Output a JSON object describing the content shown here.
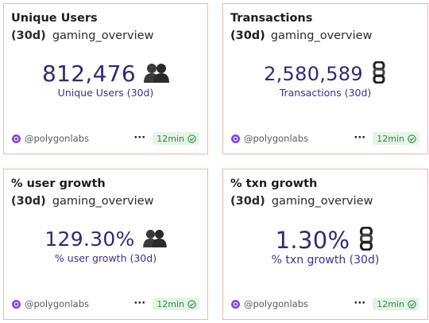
{
  "cards": [
    {
      "title": "Unique Users",
      "subtitle_prefix": "(30d)",
      "subtitle": "gaming_overview",
      "value": "812,476",
      "caption": "Unique Users (30d)",
      "icon": "users-emoji-icon",
      "author": "@polygonlabs",
      "more_label": "···",
      "badge": "12min"
    },
    {
      "title": "Transactions (30d)",
      "subtitle_prefix": "",
      "subtitle": "gaming_overview",
      "value": "2,580,589",
      "caption": "Transactions (30d)",
      "icon": "chain-emoji-icon",
      "author": "@polygonlabs",
      "more_label": "···",
      "badge": "12min"
    },
    {
      "title": "% user growth",
      "subtitle_prefix": "(30d)",
      "subtitle": "gaming_overview",
      "value": "129.30%",
      "caption": "% user growth (30d)",
      "icon": "users-emoji-icon",
      "author": "@polygonlabs",
      "more_label": "···",
      "badge": "12min"
    },
    {
      "title": "% txn growth",
      "subtitle_prefix": "(30d)",
      "subtitle": "gaming_overview",
      "value": "1.30%",
      "caption": "% txn growth (30d)",
      "icon": "chain-emoji-icon",
      "author": "@polygonlabs",
      "more_label": "···",
      "badge": "12min"
    }
  ],
  "colors": {
    "card_border": "#ecb8a7",
    "value_text": "#2f2a77",
    "caption_text": "#3b3191",
    "badge_bg": "#e5f4e6",
    "badge_text": "#2e8b3d",
    "author_icon": "#8247e5"
  }
}
